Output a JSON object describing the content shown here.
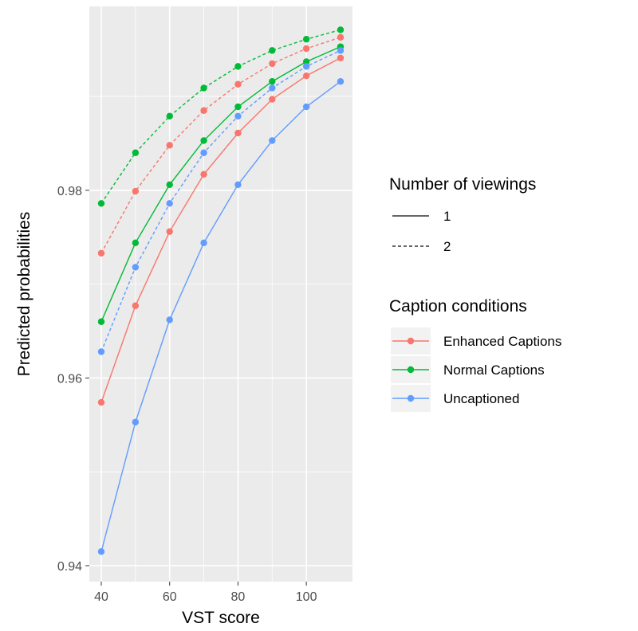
{
  "chart_data": {
    "type": "line",
    "title": "",
    "xlabel": "VST score",
    "ylabel": "Predicted probabilities",
    "xlim": [
      36.5,
      113.5
    ],
    "ylim": [
      0.9383,
      0.9996
    ],
    "x_ticks": [
      40,
      60,
      80,
      100
    ],
    "x_tick_labels": [
      "40",
      "60",
      "80",
      "100"
    ],
    "y_ticks": [
      0.94,
      0.96,
      0.98
    ],
    "y_tick_labels": [
      "0.94",
      "0.96",
      "0.98"
    ],
    "grid": true,
    "legend_placement": "right",
    "x": [
      40,
      50,
      60,
      70,
      80,
      90,
      100,
      110
    ],
    "series": [
      {
        "name": "Enhanced Captions",
        "viewings": "1",
        "color": "#F8766D",
        "linetype": "solid",
        "values": [
          0.9574,
          0.9677,
          0.9756,
          0.9817,
          0.9861,
          0.9897,
          0.9922,
          0.9941
        ]
      },
      {
        "name": "Normal Captions",
        "viewings": "1",
        "color": "#00BA38",
        "linetype": "solid",
        "values": [
          0.966,
          0.9744,
          0.9806,
          0.9853,
          0.9889,
          0.9916,
          0.9937,
          0.9953
        ]
      },
      {
        "name": "Uncaptioned",
        "viewings": "1",
        "color": "#619CFF",
        "linetype": "solid",
        "values": [
          0.9415,
          0.9553,
          0.9662,
          0.9744,
          0.9806,
          0.9853,
          0.9889,
          0.9916
        ]
      },
      {
        "name": "Enhanced Captions",
        "viewings": "2",
        "color": "#F8766D",
        "linetype": "dashed",
        "values": [
          0.9733,
          0.9799,
          0.9848,
          0.9885,
          0.9913,
          0.9935,
          0.9951,
          0.9963
        ]
      },
      {
        "name": "Normal Captions",
        "viewings": "2",
        "color": "#00BA38",
        "linetype": "dashed",
        "values": [
          0.9786,
          0.984,
          0.9879,
          0.9909,
          0.9932,
          0.9949,
          0.9961,
          0.9971
        ]
      },
      {
        "name": "Uncaptioned",
        "viewings": "2",
        "color": "#619CFF",
        "linetype": "dashed",
        "values": [
          0.9628,
          0.9718,
          0.9786,
          0.984,
          0.9879,
          0.9909,
          0.9932,
          0.9949
        ]
      }
    ],
    "legend": {
      "viewings_title": "Number of viewings",
      "viewings_items": [
        {
          "label": "1",
          "linetype": "solid"
        },
        {
          "label": "2",
          "linetype": "dashed"
        }
      ],
      "conditions_title": "Caption conditions",
      "conditions_items": [
        {
          "label": "Enhanced Captions",
          "color": "#F8766D"
        },
        {
          "label": "Normal Captions",
          "color": "#00BA38"
        },
        {
          "label": "Uncaptioned",
          "color": "#619CFF"
        }
      ]
    },
    "colors": {
      "panel": "#EBEBEB",
      "grid_major": "#FFFFFF",
      "legend_key": "#F2F2F2"
    }
  }
}
